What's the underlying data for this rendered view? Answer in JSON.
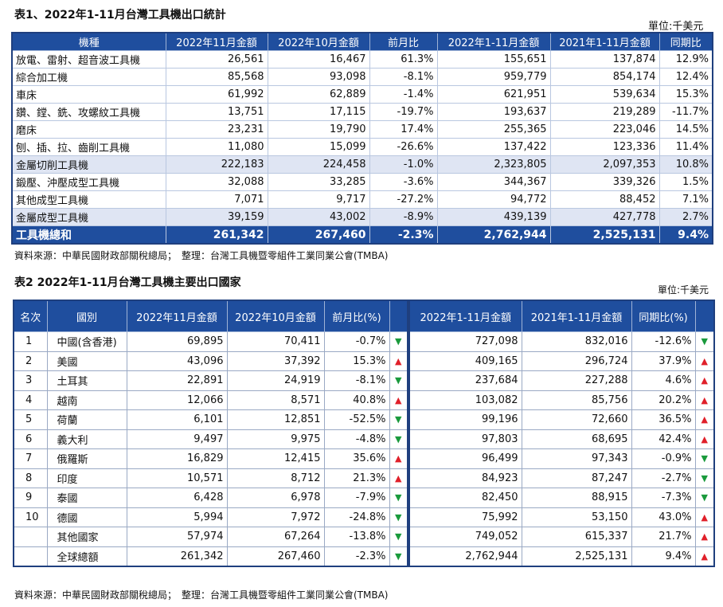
{
  "table1": {
    "title": "表1、2022年1-11月台灣工具機出口統計",
    "unit": "單位:千美元",
    "headers": [
      "機種",
      "2022年11月金額",
      "2022年10月金額",
      "前月比",
      "2022年1-11月金額",
      "2021年1-11月金額",
      "同期比"
    ],
    "rows": [
      {
        "name": "放電、雷射、超音波工具機",
        "nov": "26,561",
        "oct": "16,467",
        "mom": "61.3%",
        "ytd22": "155,651",
        "ytd21": "137,874",
        "yoy": "12.9%"
      },
      {
        "name": "綜合加工機",
        "nov": "85,568",
        "oct": "93,098",
        "mom": "-8.1%",
        "ytd22": "959,779",
        "ytd21": "854,174",
        "yoy": "12.4%"
      },
      {
        "name": "車床",
        "nov": "61,992",
        "oct": "62,889",
        "mom": "-1.4%",
        "ytd22": "621,951",
        "ytd21": "539,634",
        "yoy": "15.3%"
      },
      {
        "name": "鑽、鏜、銑、攻螺紋工具機",
        "nov": "13,751",
        "oct": "17,115",
        "mom": "-19.7%",
        "ytd22": "193,637",
        "ytd21": "219,289",
        "yoy": "-11.7%"
      },
      {
        "name": "磨床",
        "nov": "23,231",
        "oct": "19,790",
        "mom": "17.4%",
        "ytd22": "255,365",
        "ytd21": "223,046",
        "yoy": "14.5%"
      },
      {
        "name": "刨、插、拉、齒削工具機",
        "nov": "11,080",
        "oct": "15,099",
        "mom": "-26.6%",
        "ytd22": "137,422",
        "ytd21": "123,336",
        "yoy": "11.4%"
      },
      {
        "name": "金屬切削工具機",
        "nov": "222,183",
        "oct": "224,458",
        "mom": "-1.0%",
        "ytd22": "2,323,805",
        "ytd21": "2,097,353",
        "yoy": "10.8%"
      },
      {
        "name": "鍛壓、沖壓成型工具機",
        "nov": "32,088",
        "oct": "33,285",
        "mom": "-3.6%",
        "ytd22": "344,367",
        "ytd21": "339,326",
        "yoy": "1.5%"
      },
      {
        "name": "其他成型工具機",
        "nov": "7,071",
        "oct": "9,717",
        "mom": "-27.2%",
        "ytd22": "94,772",
        "ytd21": "88,452",
        "yoy": "7.1%"
      },
      {
        "name": "金屬成型工具機",
        "nov": "39,159",
        "oct": "43,002",
        "mom": "-8.9%",
        "ytd22": "439,139",
        "ytd21": "427,778",
        "yoy": "2.7%"
      },
      {
        "name": "工具機總和",
        "nov": "261,342",
        "oct": "267,460",
        "mom": "-2.3%",
        "ytd22": "2,762,944",
        "ytd21": "2,525,131",
        "yoy": "9.4%"
      }
    ],
    "source": "資料來源：中華民國財政部關稅總局；　整理：台灣工具機暨零組件工業同業公會(TMBA)"
  },
  "table2": {
    "title": "表2  2022年1-11月台灣工具機主要出口國家",
    "unit": "單位:千美元",
    "headers": [
      "名次",
      "國別",
      "2022年11月金額",
      "2022年10月金額",
      "前月比(%)",
      "2022年1-11月金額",
      "2021年1-11月金額",
      "同期比(%)"
    ],
    "rows": [
      {
        "rank": "1",
        "country": "中國(含香港)",
        "nov": "69,895",
        "oct": "70,411",
        "mom": "-0.7%",
        "mom_dir": "down",
        "ytd22": "727,098",
        "ytd21": "832,016",
        "yoy": "-12.6%",
        "yoy_dir": "down"
      },
      {
        "rank": "2",
        "country": "美國",
        "nov": "43,096",
        "oct": "37,392",
        "mom": "15.3%",
        "mom_dir": "up",
        "ytd22": "409,165",
        "ytd21": "296,724",
        "yoy": "37.9%",
        "yoy_dir": "up"
      },
      {
        "rank": "3",
        "country": "土耳其",
        "nov": "22,891",
        "oct": "24,919",
        "mom": "-8.1%",
        "mom_dir": "down",
        "ytd22": "237,684",
        "ytd21": "227,288",
        "yoy": "4.6%",
        "yoy_dir": "up"
      },
      {
        "rank": "4",
        "country": "越南",
        "nov": "12,066",
        "oct": "8,571",
        "mom": "40.8%",
        "mom_dir": "up",
        "ytd22": "103,082",
        "ytd21": "85,756",
        "yoy": "20.2%",
        "yoy_dir": "up"
      },
      {
        "rank": "5",
        "country": "荷蘭",
        "nov": "6,101",
        "oct": "12,851",
        "mom": "-52.5%",
        "mom_dir": "down",
        "ytd22": "99,196",
        "ytd21": "72,660",
        "yoy": "36.5%",
        "yoy_dir": "up"
      },
      {
        "rank": "6",
        "country": "義大利",
        "nov": "9,497",
        "oct": "9,975",
        "mom": "-4.8%",
        "mom_dir": "down",
        "ytd22": "97,803",
        "ytd21": "68,695",
        "yoy": "42.4%",
        "yoy_dir": "up"
      },
      {
        "rank": "7",
        "country": "俄羅斯",
        "nov": "16,829",
        "oct": "12,415",
        "mom": "35.6%",
        "mom_dir": "up",
        "ytd22": "96,499",
        "ytd21": "97,343",
        "yoy": "-0.9%",
        "yoy_dir": "down"
      },
      {
        "rank": "8",
        "country": "印度",
        "nov": "10,571",
        "oct": "8,712",
        "mom": "21.3%",
        "mom_dir": "up",
        "ytd22": "84,923",
        "ytd21": "87,247",
        "yoy": "-2.7%",
        "yoy_dir": "down"
      },
      {
        "rank": "9",
        "country": "泰國",
        "nov": "6,428",
        "oct": "6,978",
        "mom": "-7.9%",
        "mom_dir": "down",
        "ytd22": "82,450",
        "ytd21": "88,915",
        "yoy": "-7.3%",
        "yoy_dir": "down"
      },
      {
        "rank": "10",
        "country": "德國",
        "nov": "5,994",
        "oct": "7,972",
        "mom": "-24.8%",
        "mom_dir": "down",
        "ytd22": "75,992",
        "ytd21": "53,150",
        "yoy": "43.0%",
        "yoy_dir": "up"
      },
      {
        "rank": "",
        "country": "其他國家",
        "nov": "57,974",
        "oct": "67,264",
        "mom": "-13.8%",
        "mom_dir": "down",
        "ytd22": "749,052",
        "ytd21": "615,337",
        "yoy": "21.7%",
        "yoy_dir": "up"
      },
      {
        "rank": "",
        "country": "全球總額",
        "nov": "261,342",
        "oct": "267,460",
        "mom": "-2.3%",
        "mom_dir": "down",
        "ytd22": "2,762,944",
        "ytd21": "2,525,131",
        "yoy": "9.4%",
        "yoy_dir": "up"
      }
    ],
    "source": "資料來源：中華民國財政部關稅總局；　整理：台灣工具機暨零組件工業同業公會(TMBA)"
  },
  "colors": {
    "header": "#1f4e9e",
    "subtotal": "#dfe5f3",
    "up": "#e0202a",
    "down": "#1a9a3c"
  },
  "icons": {
    "up": "triangle-up-icon",
    "down": "triangle-down-icon"
  }
}
